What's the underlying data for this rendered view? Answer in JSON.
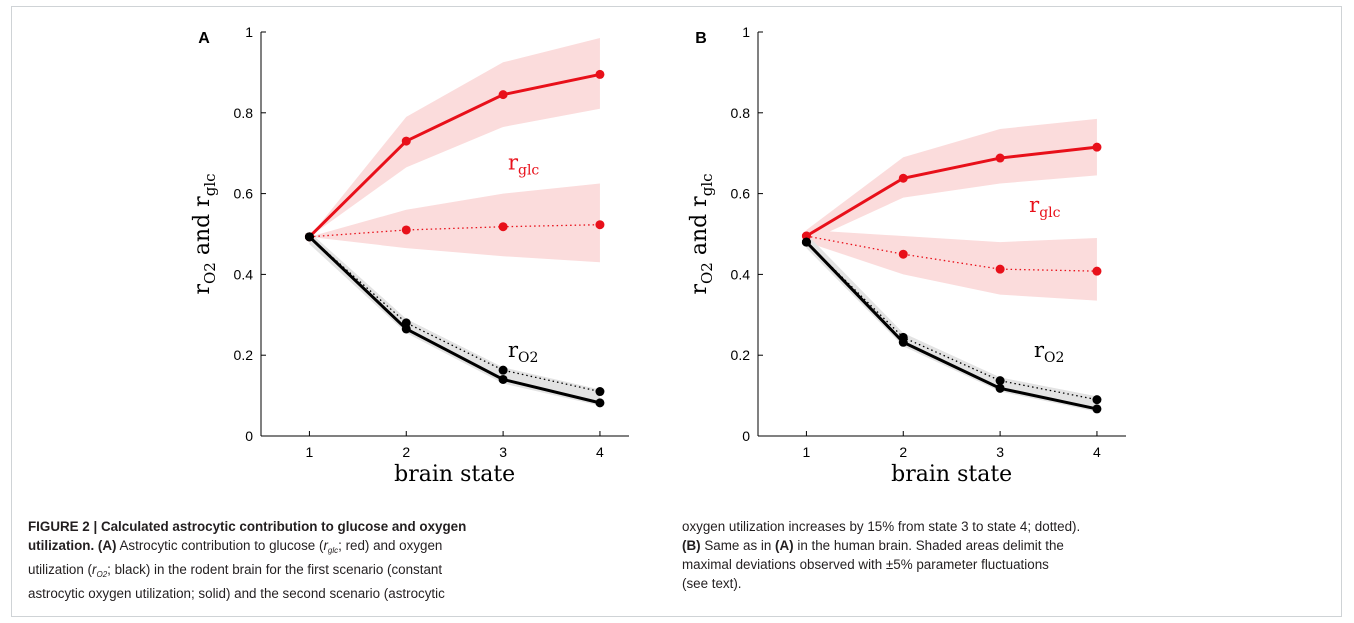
{
  "chart_data": [
    {
      "type": "line",
      "panel_label": "A",
      "xlabel": "brain state",
      "ylabel": "r_O2 and r_glc",
      "ylabel_parts": {
        "r1": "r",
        "s1": "O2",
        "and": "and",
        "r2": "r",
        "s2": "glc"
      },
      "ylim": [
        0,
        1
      ],
      "xlim": [
        0.5,
        4.3
      ],
      "x": [
        1,
        2,
        3,
        4
      ],
      "x_ticks": [
        "1",
        "2",
        "3",
        "4"
      ],
      "y_ticks": [
        "0",
        "0.2",
        "0.4",
        "0.6",
        "0.8",
        "1"
      ],
      "annotations": [
        {
          "base": "r",
          "sub": "glc",
          "color": "#e8101a",
          "x": 3.05,
          "y": 0.66
        },
        {
          "base": "r",
          "sub": "O2",
          "color": "#000000",
          "x": 3.05,
          "y": 0.195
        }
      ],
      "series": [
        {
          "color": "#e8101a",
          "style": "solid",
          "values": [
            0.493,
            0.73,
            0.845,
            0.895
          ],
          "band_lower": [
            0.493,
            0.665,
            0.765,
            0.81
          ],
          "band_upper": [
            0.493,
            0.79,
            0.925,
            0.985
          ],
          "band_color": "#fbdcdc"
        },
        {
          "color": "#e8101a",
          "style": "dotted",
          "values": [
            0.493,
            0.51,
            0.518,
            0.523
          ],
          "band_lower": [
            0.493,
            0.465,
            0.445,
            0.43
          ],
          "band_upper": [
            0.493,
            0.56,
            0.6,
            0.625
          ],
          "band_color": "#fbdcdc"
        },
        {
          "color": "#000000",
          "style": "solid",
          "values": [
            0.493,
            0.265,
            0.14,
            0.082
          ],
          "band_lower": [
            0.475,
            0.255,
            0.13,
            0.075
          ],
          "band_upper": [
            0.505,
            0.29,
            0.17,
            0.115
          ],
          "band_color": "#e3e3e3"
        },
        {
          "color": "#000000",
          "style": "dotted",
          "values": [
            0.493,
            0.28,
            0.163,
            0.11
          ]
        }
      ]
    },
    {
      "type": "line",
      "panel_label": "B",
      "xlabel": "brain state",
      "ylabel": "r_O2 and r_glc",
      "ylabel_parts": {
        "r1": "r",
        "s1": "O2",
        "and": "and",
        "r2": "r",
        "s2": "glc"
      },
      "ylim": [
        0,
        1
      ],
      "xlim": [
        0.5,
        4.3
      ],
      "x": [
        1,
        2,
        3,
        4
      ],
      "x_ticks": [
        "1",
        "2",
        "3",
        "4"
      ],
      "y_ticks": [
        "0",
        "0.2",
        "0.4",
        "0.6",
        "0.8",
        "1"
      ],
      "annotations": [
        {
          "base": "r",
          "sub": "glc",
          "color": "#e8101a",
          "x": 3.3,
          "y": 0.555
        },
        {
          "base": "r",
          "sub": "O2",
          "color": "#000000",
          "x": 3.35,
          "y": 0.195
        }
      ],
      "series": [
        {
          "color": "#e8101a",
          "style": "solid",
          "values": [
            0.495,
            0.638,
            0.688,
            0.715
          ],
          "band_lower": [
            0.48,
            0.59,
            0.625,
            0.645
          ],
          "band_upper": [
            0.51,
            0.69,
            0.76,
            0.785
          ],
          "band_color": "#fbdcdc"
        },
        {
          "color": "#e8101a",
          "style": "dotted",
          "values": [
            0.495,
            0.45,
            0.413,
            0.408
          ],
          "band_lower": [
            0.48,
            0.4,
            0.35,
            0.335
          ],
          "band_upper": [
            0.51,
            0.495,
            0.48,
            0.49
          ],
          "band_color": "#fbdcdc"
        },
        {
          "color": "#000000",
          "style": "solid",
          "values": [
            0.48,
            0.232,
            0.118,
            0.067
          ],
          "band_lower": [
            0.465,
            0.222,
            0.11,
            0.06
          ],
          "band_upper": [
            0.5,
            0.255,
            0.145,
            0.098
          ],
          "band_color": "#e3e3e3"
        },
        {
          "color": "#000000",
          "style": "dotted",
          "values": [
            0.48,
            0.244,
            0.137,
            0.09
          ]
        }
      ]
    }
  ],
  "caption": {
    "left": {
      "line1": "FIGURE 2 | Calculated astrocytic contribution to glucose and oxygen",
      "line2_bold_start": "utilization. (A)",
      "line2_a": " Astrocytic contribution to glucose (",
      "line2_r": "r",
      "line2_sub": "glc",
      "line2_b": "; red) and oxygen",
      "line3_a": "utilization (",
      "line3_r": "r",
      "line3_sub": "O2",
      "line3_b": "; black) in the rodent brain for the first scenario (constant",
      "line4": "astrocytic oxygen utilization; solid) and the second scenario (astrocytic"
    },
    "right": {
      "line1": "oxygen utilization increases by 15% from state 3 to state 4; dotted).",
      "line2_bold": "(B)",
      "line2_a": " Same as in ",
      "line2_bold2": "(A)",
      "line2_b": " in the human brain. Shaded areas delimit the",
      "line3": "maximal deviations observed with ±5% parameter fluctuations",
      "line4": "(see text)."
    }
  }
}
